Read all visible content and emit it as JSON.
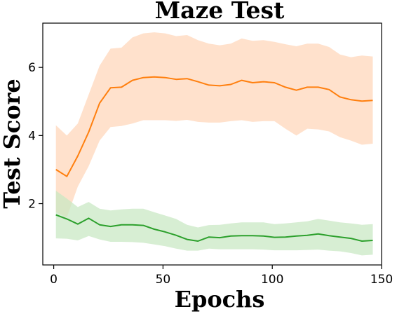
{
  "chart_data": {
    "type": "line",
    "title": "Maze Test",
    "xlabel": "Epochs",
    "ylabel": "Test Score",
    "xlim": [
      -5,
      150
    ],
    "ylim": [
      0.2,
      7.3
    ],
    "xticks": [
      0,
      50,
      100,
      150
    ],
    "yticks": [
      2,
      4,
      6
    ],
    "grid": false,
    "series": [
      {
        "color": "#ff7f0e",
        "band_color": "#ffd5b8",
        "x": [
          1,
          6,
          11,
          16,
          21,
          26,
          31,
          36,
          41,
          46,
          51,
          56,
          61,
          66,
          71,
          76,
          81,
          86,
          91,
          96,
          101,
          106,
          111,
          116,
          121,
          126,
          131,
          136,
          141,
          146
        ],
        "values": [
          3.0,
          2.8,
          3.4,
          4.1,
          4.95,
          5.4,
          5.42,
          5.62,
          5.7,
          5.72,
          5.7,
          5.65,
          5.67,
          5.58,
          5.48,
          5.46,
          5.5,
          5.62,
          5.55,
          5.58,
          5.55,
          5.42,
          5.33,
          5.42,
          5.42,
          5.35,
          5.13,
          5.05,
          5.01,
          5.03
        ],
        "lower": [
          1.75,
          1.6,
          2.5,
          3.1,
          3.85,
          4.25,
          4.28,
          4.35,
          4.45,
          4.45,
          4.45,
          4.43,
          4.46,
          4.4,
          4.38,
          4.38,
          4.42,
          4.45,
          4.4,
          4.42,
          4.42,
          4.2,
          4.0,
          4.2,
          4.18,
          4.12,
          3.95,
          3.85,
          3.73,
          3.76
        ],
        "upper": [
          4.3,
          4.0,
          4.35,
          5.2,
          6.05,
          6.55,
          6.58,
          6.88,
          7.0,
          7.03,
          7.0,
          6.92,
          6.95,
          6.8,
          6.7,
          6.65,
          6.7,
          6.85,
          6.78,
          6.8,
          6.75,
          6.68,
          6.62,
          6.7,
          6.7,
          6.6,
          6.38,
          6.3,
          6.35,
          6.32
        ]
      },
      {
        "color": "#2ca02c",
        "band_color": "#c7e7c2",
        "x": [
          1,
          6,
          11,
          16,
          21,
          26,
          31,
          36,
          41,
          46,
          51,
          56,
          61,
          66,
          71,
          76,
          81,
          86,
          91,
          96,
          101,
          106,
          111,
          116,
          121,
          126,
          131,
          136,
          141,
          146
        ],
        "values": [
          1.67,
          1.55,
          1.4,
          1.57,
          1.38,
          1.33,
          1.38,
          1.38,
          1.36,
          1.25,
          1.17,
          1.07,
          0.95,
          0.9,
          1.02,
          1.0,
          1.05,
          1.06,
          1.06,
          1.05,
          1.01,
          1.02,
          1.05,
          1.07,
          1.11,
          1.06,
          1.02,
          0.98,
          0.9,
          0.92
        ],
        "lower": [
          0.98,
          0.97,
          0.92,
          1.05,
          0.95,
          0.88,
          0.88,
          0.87,
          0.85,
          0.8,
          0.75,
          0.68,
          0.62,
          0.62,
          0.68,
          0.66,
          0.66,
          0.66,
          0.66,
          0.65,
          0.63,
          0.63,
          0.63,
          0.64,
          0.65,
          0.62,
          0.6,
          0.55,
          0.48,
          0.5
        ],
        "upper": [
          2.38,
          2.15,
          1.9,
          2.05,
          1.85,
          1.8,
          1.83,
          1.85,
          1.85,
          1.75,
          1.65,
          1.55,
          1.38,
          1.3,
          1.37,
          1.38,
          1.42,
          1.45,
          1.45,
          1.45,
          1.4,
          1.42,
          1.45,
          1.48,
          1.55,
          1.5,
          1.45,
          1.42,
          1.38,
          1.4
        ]
      }
    ]
  }
}
